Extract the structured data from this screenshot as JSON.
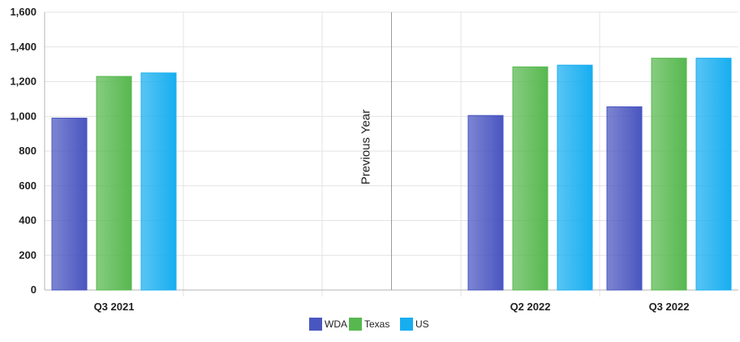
{
  "chart_data": {
    "type": "bar",
    "categories": [
      "Q3 2021",
      "",
      "",
      "Q2 2022",
      "Q3 2022"
    ],
    "series": [
      {
        "name": "WDA",
        "color": "#4a56c0",
        "values": [
          990,
          null,
          null,
          1005,
          1055
        ]
      },
      {
        "name": "Texas",
        "color": "#57b84f",
        "values": [
          1230,
          null,
          null,
          1285,
          1335
        ]
      },
      {
        "name": "US",
        "color": "#17aef0",
        "values": [
          1250,
          null,
          null,
          1295,
          1335
        ]
      }
    ],
    "ylim": [
      0,
      1600
    ],
    "yticks": [
      "0",
      "200",
      "400",
      "600",
      "800",
      "1,000",
      "1,200",
      "1,400",
      "1,600"
    ],
    "annotation": "Previous Year",
    "grid": true,
    "legend_position": "bottom-center"
  }
}
